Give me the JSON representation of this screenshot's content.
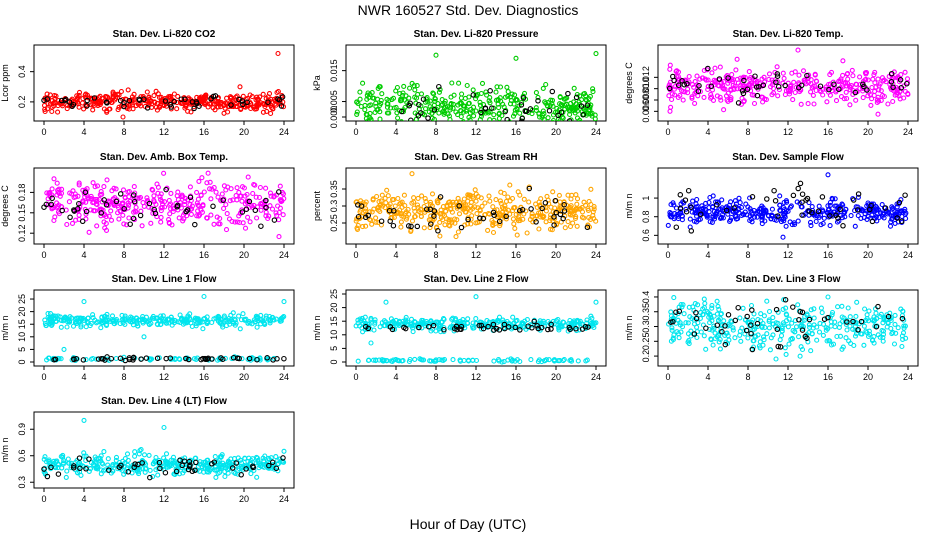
{
  "title": "NWR  160527  Std. Dev. Diagnostics",
  "xlabel_global": "Hour of Day (UTC)",
  "chart_data": [
    {
      "type": "scatter",
      "title": "Stan. Dev. Li-820 CO2",
      "ylabel": "Lcor ppm",
      "xlim": [
        0,
        24
      ],
      "xticks": [
        0,
        4,
        8,
        12,
        16,
        20,
        24
      ],
      "ylim": [
        0.1,
        0.55
      ],
      "yticks": [
        0.2,
        0.4
      ],
      "color": "#ff0000",
      "series": [
        {
          "name": "samples",
          "base": 0.2,
          "spread": 0.03,
          "n": 380,
          "outliers": [
            [
              7.9,
              0.1
            ],
            [
              23.4,
              0.52
            ],
            [
              19.6,
              0.3
            ]
          ]
        },
        {
          "name": "highlight",
          "color": "#000000",
          "base": 0.2,
          "spread": 0.02,
          "n": 45
        }
      ]
    },
    {
      "type": "scatter",
      "title": "Stan. Dev. Li-820 Pressure",
      "ylabel": "kPa",
      "xlim": [
        0,
        24
      ],
      "xticks": [
        0,
        4,
        8,
        12,
        16,
        20,
        24
      ],
      "ylim": [
        0,
        0.022
      ],
      "yticks": [
        0.0,
        0.005,
        0.015
      ],
      "color": "#00cc00",
      "series": [
        {
          "name": "samples",
          "base": 0.0035,
          "spread": 0.003,
          "n": 380,
          "outliers": [
            [
              8,
              0.02
            ],
            [
              16,
              0.019
            ],
            [
              24,
              0.0205
            ]
          ]
        },
        {
          "name": "highlight",
          "color": "#000000",
          "base": 0.003,
          "spread": 0.003,
          "n": 40
        }
      ]
    },
    {
      "type": "scatter",
      "title": "Stan. Dev. Li-820 Temp.",
      "ylabel": "degrees C",
      "xlim": [
        0,
        24
      ],
      "xticks": [
        0,
        4,
        8,
        12,
        16,
        20,
        24
      ],
      "ylim": [
        0.005,
        0.017
      ],
      "yticks": [
        0.006,
        0.008,
        0.01,
        0.012
      ],
      "color": "#ff00ff",
      "series": [
        {
          "name": "samples",
          "base": 0.0105,
          "spread": 0.0016,
          "n": 380,
          "outliers": [
            [
              0.2,
              0.006
            ],
            [
              13,
              0.0168
            ],
            [
              21,
              0.0055
            ]
          ]
        },
        {
          "name": "highlight",
          "color": "#000000",
          "base": 0.0105,
          "spread": 0.0012,
          "n": 45
        }
      ]
    },
    {
      "type": "scatter",
      "title": "Stan. Dev. Amb. Box Temp.",
      "ylabel": "degrees C",
      "xlim": [
        0,
        24
      ],
      "xticks": [
        0,
        4,
        8,
        12,
        16,
        20,
        24
      ],
      "ylim": [
        0.11,
        0.21
      ],
      "yticks": [
        0.12,
        0.15,
        0.18
      ],
      "color": "#ff00ff",
      "series": [
        {
          "name": "samples",
          "base": 0.163,
          "spread": 0.016,
          "n": 380,
          "outliers": [
            [
              1,
              0.2
            ],
            [
              23.5,
              0.115
            ]
          ]
        },
        {
          "name": "highlight",
          "color": "#000000",
          "base": 0.16,
          "spread": 0.012,
          "n": 45
        }
      ]
    },
    {
      "type": "scatter",
      "title": "Stan. Dev. Gas Stream RH",
      "ylabel": "percent",
      "xlim": [
        0,
        24
      ],
      "xticks": [
        0,
        4,
        8,
        12,
        16,
        20,
        24
      ],
      "ylim": [
        0.2,
        0.4
      ],
      "yticks": [
        0.25,
        0.3,
        0.35
      ],
      "color": "#ffa500",
      "series": [
        {
          "name": "samples",
          "base": 0.285,
          "spread": 0.028,
          "n": 420,
          "outliers": [
            [
              5.6,
              0.395
            ],
            [
              10,
              0.21
            ]
          ]
        },
        {
          "name": "highlight",
          "color": "#000000",
          "base": 0.28,
          "spread": 0.025,
          "n": 45
        }
      ]
    },
    {
      "type": "scatter",
      "title": "Stan. Dev. Sample Flow",
      "ylabel": "m/m n",
      "xlim": [
        0,
        24
      ],
      "xticks": [
        0,
        4,
        8,
        12,
        16,
        20,
        24
      ],
      "ylim": [
        0.55,
        1.28
      ],
      "yticks": [
        0.6,
        0.8,
        1.0
      ],
      "color": "#0000ff",
      "series": [
        {
          "name": "samples",
          "base": 0.85,
          "spread": 0.07,
          "n": 380,
          "outliers": [
            [
              16,
              1.25
            ],
            [
              11.5,
              0.58
            ]
          ]
        },
        {
          "name": "highlight",
          "color": "#000000",
          "base": 0.9,
          "spread": 0.12,
          "n": 45
        }
      ]
    },
    {
      "type": "scatter",
      "title": "Stan. Dev. Line 1 Flow",
      "ylabel": "m/m n",
      "xlim": [
        0,
        24
      ],
      "xticks": [
        0,
        4,
        8,
        12,
        16,
        20,
        24
      ],
      "ylim": [
        0,
        27
      ],
      "yticks": [
        0,
        5,
        10,
        15,
        20,
        25
      ],
      "color": "#00e5ee",
      "series": [
        {
          "name": "samples",
          "bands": [
            [
              16.5,
              1.2
            ],
            [
              1.2,
              0.3
            ]
          ],
          "n": 380,
          "outliers": [
            [
              4,
              24
            ],
            [
              16,
              26
            ],
            [
              24,
              24
            ],
            [
              2,
              5
            ],
            [
              10,
              10
            ]
          ]
        },
        {
          "name": "highlight",
          "color": "#000000",
          "base": 1.3,
          "spread": 0.3,
          "n": 45
        }
      ]
    },
    {
      "type": "scatter",
      "title": "Stan. Dev. Line 2 Flow",
      "ylabel": "m/m n",
      "xlim": [
        0,
        24
      ],
      "xticks": [
        0,
        4,
        8,
        12,
        16,
        20,
        24
      ],
      "ylim": [
        0,
        25
      ],
      "yticks": [
        0,
        5,
        10,
        15,
        20,
        25
      ],
      "color": "#00e5ee",
      "series": [
        {
          "name": "samples",
          "bands": [
            [
              14,
              1.2
            ],
            [
              0.6,
              0.25
            ]
          ],
          "n": 380,
          "outliers": [
            [
              3,
              22
            ],
            [
              12,
              24
            ],
            [
              24,
              22
            ],
            [
              1.5,
              7
            ]
          ]
        },
        {
          "name": "highlight",
          "color": "#000000",
          "base": 12.5,
          "spread": 0.8,
          "n": 45
        }
      ]
    },
    {
      "type": "scatter",
      "title": "Stan. Dev. Line 3 Flow",
      "ylabel": "m/m n",
      "xlim": [
        0,
        24
      ],
      "xticks": [
        0,
        4,
        8,
        12,
        16,
        20,
        24
      ],
      "ylim": [
        0.18,
        0.41
      ],
      "yticks": [
        0.2,
        0.25,
        0.3,
        0.35,
        0.4
      ],
      "color": "#00e5ee",
      "series": [
        {
          "name": "samples",
          "base": 0.3,
          "spread": 0.04,
          "n": 380,
          "outliers": [
            [
              10.8,
              0.19
            ],
            [
              16,
              0.4
            ]
          ]
        },
        {
          "name": "highlight",
          "color": "#000000",
          "base": 0.31,
          "spread": 0.035,
          "n": 45
        }
      ]
    },
    {
      "type": "scatter",
      "title": "Stan. Dev. Line 4 (LT) Flow",
      "ylabel": "m/m n",
      "xlim": [
        0,
        24
      ],
      "xticks": [
        0,
        4,
        8,
        12,
        16,
        20,
        24
      ],
      "ylim": [
        0.28,
        1.05
      ],
      "yticks": [
        0.3,
        0.6,
        0.9
      ],
      "color": "#00e5ee",
      "series": [
        {
          "name": "samples",
          "base": 0.5,
          "spread": 0.06,
          "n": 380,
          "outliers": [
            [
              4,
              1.0
            ],
            [
              12,
              0.92
            ],
            [
              24,
              0.65
            ]
          ]
        },
        {
          "name": "highlight",
          "color": "#000000",
          "base": 0.48,
          "spread": 0.06,
          "n": 45
        }
      ]
    }
  ]
}
